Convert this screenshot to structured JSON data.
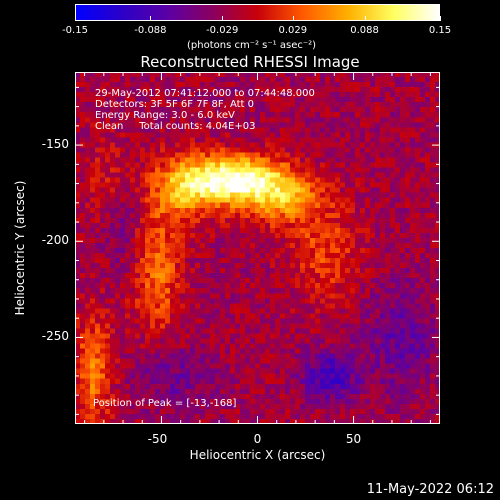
{
  "colorbar": {
    "ticks": [
      "-0.15",
      "-0.088",
      "-0.029",
      "0.029",
      "0.088",
      "0.15"
    ],
    "tick_values": [
      -0.15,
      -0.088,
      -0.029,
      0.029,
      0.088,
      0.15
    ],
    "units_label": "(photons cm⁻² s⁻¹ asec⁻²)",
    "colors": [
      "#0000ff",
      "#2b00c8",
      "#5a00a6",
      "#8a0060",
      "#c8000a",
      "#ff5a00",
      "#ffb000",
      "#ffff60",
      "#ffffff"
    ]
  },
  "annotations": {
    "line1": "29-May-2012 07:41:12.000 to 07:44:48.000",
    "line2": "Detectors: 3F 5F 6F 7F 8F, Att 0",
    "line3": "Energy Range: 3.0 - 6.0 keV",
    "line4": "Clean     Total counts: 4.04E+03",
    "peak": "Position of Peak = [-13,-168]"
  },
  "timestamp": "11-May-2022 06:12",
  "chart_data": {
    "type": "heatmap",
    "title": "Reconstructed RHESSI Image",
    "xlabel": "Heliocentric X (arcsec)",
    "ylabel": "Heliocentric Y (arcsec)",
    "xlim": [
      -95,
      95
    ],
    "ylim": [
      -295,
      -112
    ],
    "x_ticks": [
      "-50",
      "0",
      "50"
    ],
    "x_tick_values": [
      -50,
      0,
      50
    ],
    "y_ticks": [
      "-150",
      "-200",
      "-250"
    ],
    "y_tick_values": [
      -150,
      -200,
      -250
    ],
    "value_range": [
      -0.15,
      0.15
    ],
    "peak": [
      -13,
      -168
    ],
    "grid": false
  }
}
